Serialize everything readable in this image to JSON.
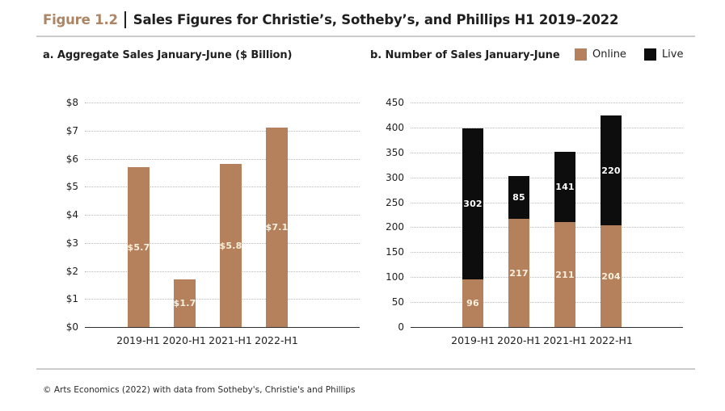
{
  "header": {
    "figure_label": "Figure 1.2",
    "title": "Sales Figures for Christie’s, Sotheby’s, and Phillips H1 2019–2022"
  },
  "legend": {
    "items": [
      {
        "label": "Online",
        "color": "#b5815c"
      },
      {
        "label": "Live",
        "color": "#0d0d0d"
      }
    ]
  },
  "footer": {
    "source_note": "© Arts Economics (2022) with data from Sotheby's, Christie's and Phillips"
  },
  "colors": {
    "accent_brown": "#b5815c",
    "figure_label_brown": "#ad8565",
    "bar_black": "#0d0d0d",
    "text_dark": "#1f1f1f",
    "gridline_gray": "#bcbcbc",
    "divider_gray": "#cbcbcb"
  },
  "chart_data": [
    {
      "type": "bar",
      "title": "a. Aggregate Sales January-June ($ Billion)",
      "categories": [
        "2019-H1",
        "2020-H1",
        "2021-H1",
        "2022-H1"
      ],
      "values": [
        5.7,
        1.7,
        5.8,
        7.1
      ],
      "bar_labels": [
        "$5.7",
        "$1.7",
        "$5.8",
        "$7.1"
      ],
      "bar_color": "#b5815c",
      "bar_label_color": "#f7efdd",
      "ylim": [
        0,
        8
      ],
      "ytick_step": 1,
      "ytick_labels": [
        "$0",
        "$1",
        "$2",
        "$3",
        "$4",
        "$5",
        "$6",
        "$7",
        "$8"
      ],
      "grid": "horizontal-dotted",
      "legend_position": "none"
    },
    {
      "type": "stacked-bar",
      "title": "b. Number of Sales January-June",
      "categories": [
        "2019-H1",
        "2020-H1",
        "2021-H1",
        "2022-H1"
      ],
      "series": [
        {
          "name": "Online",
          "color": "#b5815c",
          "label_color": "#f7efdd",
          "values": [
            96,
            217,
            211,
            204
          ]
        },
        {
          "name": "Live",
          "color": "#0d0d0d",
          "label_color": "#ffffff",
          "values": [
            302,
            85,
            141,
            220
          ]
        }
      ],
      "totals": [
        398,
        302,
        352,
        424
      ],
      "ylim": [
        0,
        450
      ],
      "ytick_step": 50,
      "ytick_labels": [
        "0",
        "50",
        "100",
        "150",
        "200",
        "250",
        "300",
        "350",
        "400",
        "450"
      ],
      "grid": "horizontal-dotted",
      "legend_position": "top-right"
    }
  ]
}
